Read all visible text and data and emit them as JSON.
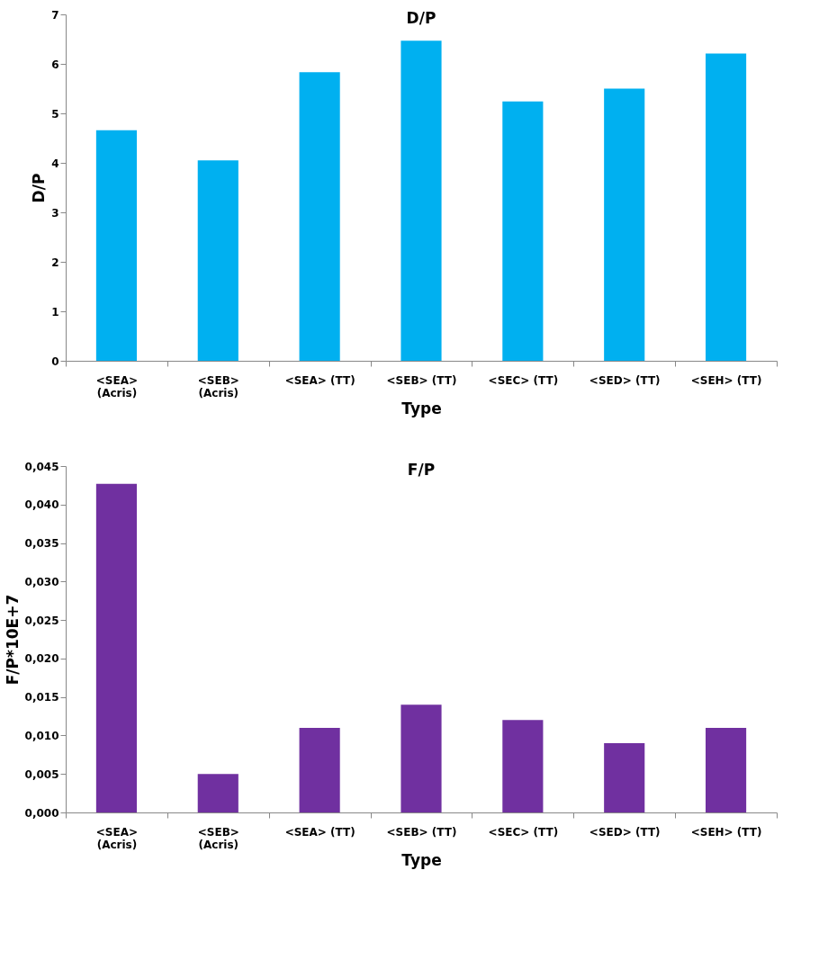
{
  "chart_data": [
    {
      "type": "bar",
      "title": "D/P",
      "xlabel": "Type",
      "ylabel": "D/P",
      "categories": [
        "<SEA>\n(Acris)",
        "<SEB>\n(Acris)",
        "<SEA> (TT)",
        "<SEB> (TT)",
        "<SEC> (TT)",
        "<SED> (TT)",
        "<SEH> (TT)"
      ],
      "values": [
        4.66,
        4.05,
        5.83,
        6.47,
        5.24,
        5.5,
        6.21
      ],
      "color": "#00b0f0",
      "ylim": [
        0,
        7
      ],
      "yticks": [
        0,
        1,
        2,
        3,
        4,
        5,
        6,
        7
      ],
      "grid": false
    },
    {
      "type": "bar",
      "title": "F/P",
      "xlabel": "Type",
      "ylabel": "F/P*10E+7",
      "categories": [
        "<SEA>\n(Acris)",
        "<SEB>\n(Acris)",
        "<SEA> (TT)",
        "<SEB> (TT)",
        "<SEC> (TT)",
        "<SED> (TT)",
        "<SEH> (TT)"
      ],
      "values": [
        0.0427,
        0.005,
        0.011,
        0.014,
        0.012,
        0.009,
        0.011
      ],
      "color": "#7030a0",
      "ylim": [
        0,
        0.045
      ],
      "yticks": [
        {
          "value": 0,
          "label": "0,000"
        },
        {
          "value": 0.005,
          "label": "0,005"
        },
        {
          "value": 0.01,
          "label": "0,010"
        },
        {
          "value": 0.015,
          "label": "0,015"
        },
        {
          "value": 0.02,
          "label": "0,020"
        },
        {
          "value": 0.025,
          "label": "0,025"
        },
        {
          "value": 0.03,
          "label": "0,030"
        },
        {
          "value": 0.035,
          "label": "0,035"
        },
        {
          "value": 0.04,
          "label": "0,040"
        },
        {
          "value": 0.045,
          "label": "0,045"
        }
      ],
      "grid": false
    }
  ]
}
